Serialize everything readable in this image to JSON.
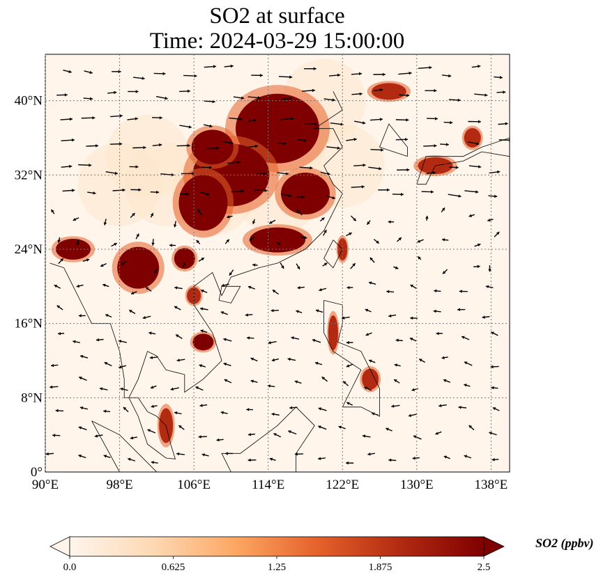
{
  "title": {
    "line1": "SO2 at surface",
    "line2": "Time: 2024-03-29 15:00:00"
  },
  "map": {
    "lon_range": [
      90,
      140
    ],
    "lat_range": [
      0,
      45
    ],
    "x_ticks": [
      "90°E",
      "98°E",
      "106°E",
      "114°E",
      "122°E",
      "130°E",
      "138°E"
    ],
    "x_tick_values": [
      90,
      98,
      106,
      114,
      122,
      130,
      138
    ],
    "y_ticks": [
      "0°",
      "8°N",
      "16°N",
      "24°N",
      "32°N",
      "40°N"
    ],
    "y_tick_values": [
      0,
      8,
      16,
      24,
      32,
      40
    ],
    "gridlines": true,
    "field": "SO2 surface concentration",
    "wind_vectors": true
  },
  "colorbar": {
    "label": "SO2 (ppbv)",
    "ticks": [
      "0.0",
      "0.625",
      "1.25",
      "1.875",
      "2.5"
    ],
    "tick_values": [
      0.0,
      0.625,
      1.25,
      1.875,
      2.5
    ],
    "range": [
      0.0,
      2.5
    ],
    "extend": "both",
    "colors": [
      "#fff5eb",
      "#fdd9b4",
      "#fda762",
      "#e5612a",
      "#b12a11",
      "#7f0000"
    ]
  }
}
